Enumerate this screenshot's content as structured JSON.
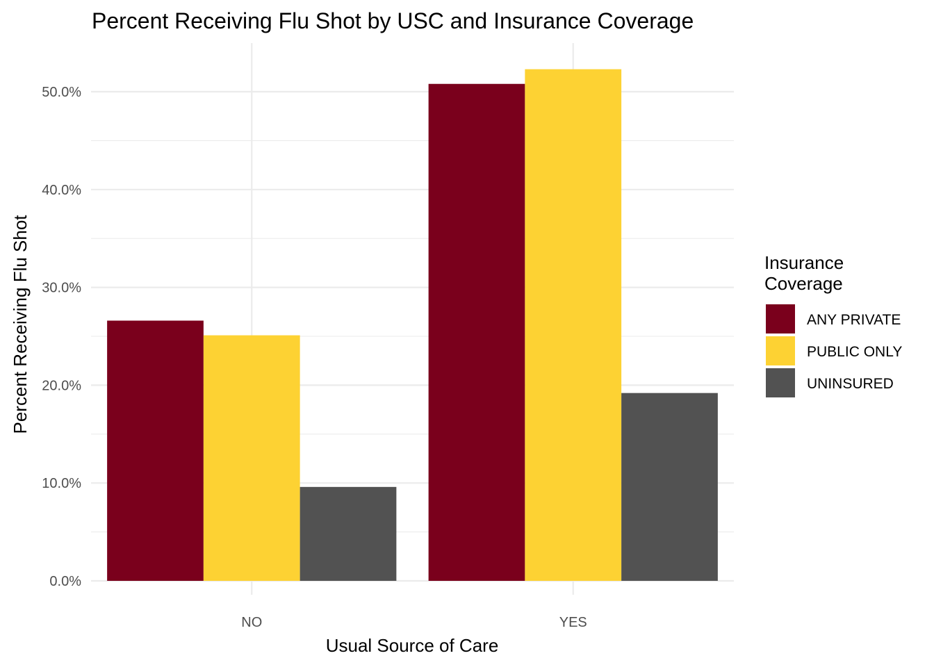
{
  "chart_data": {
    "type": "bar",
    "title": "Percent Receiving Flu Shot by USC and Insurance Coverage",
    "xlabel": "Usual Source of Care",
    "ylabel": "Percent Receiving Flu Shot",
    "categories": [
      "NO",
      "YES"
    ],
    "series": [
      {
        "name": "ANY PRIVATE",
        "color": "#7a001c",
        "values": [
          26.6,
          50.8
        ]
      },
      {
        "name": "PUBLIC ONLY",
        "color": "#fdd233",
        "values": [
          25.1,
          52.3
        ]
      },
      {
        "name": "UNINSURED",
        "color": "#525252",
        "values": [
          9.6,
          19.2
        ]
      }
    ],
    "ylim": [
      0,
      55
    ],
    "y_ticks": [
      0,
      10,
      20,
      30,
      40,
      50
    ],
    "y_tick_labels": [
      "0.0%",
      "10.0%",
      "20.0%",
      "30.0%",
      "40.0%",
      "50.0%"
    ],
    "legend": {
      "title_line1": "Insurance",
      "title_line2": "Coverage",
      "position": "right"
    },
    "grid": true
  }
}
